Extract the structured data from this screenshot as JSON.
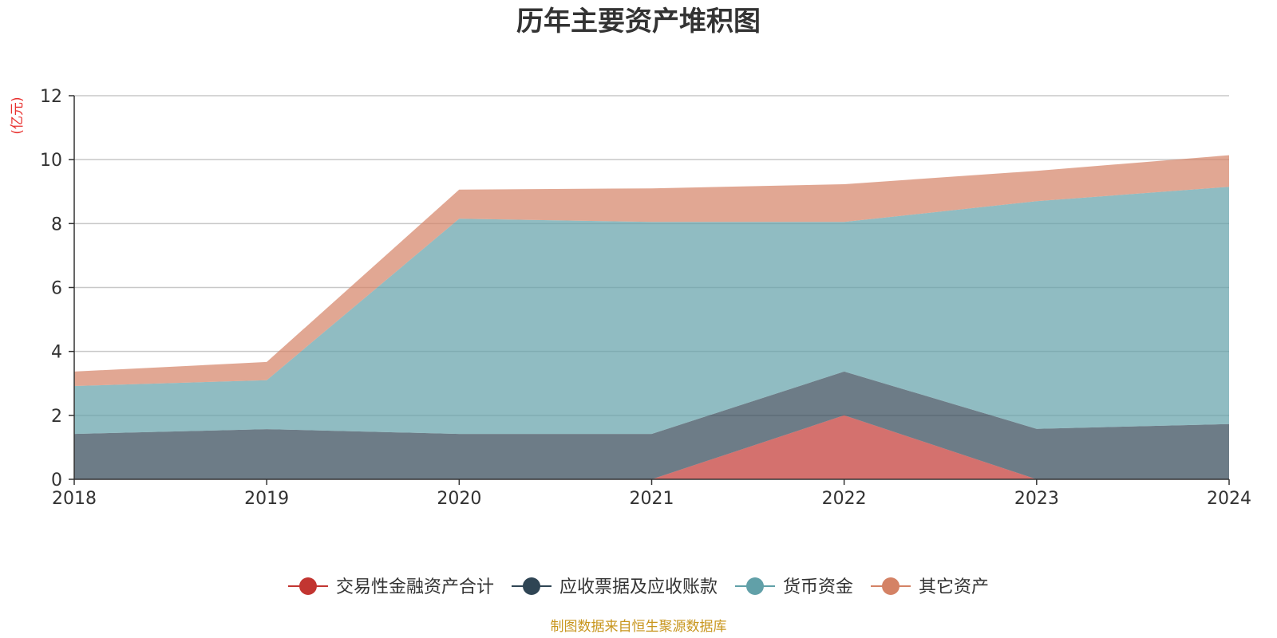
{
  "chart_data": {
    "type": "area",
    "stacked": true,
    "title": "历年主要资产堆积图",
    "unit_label": "(亿元)",
    "x": [
      "2018",
      "2019",
      "2020",
      "2021",
      "2022",
      "2023",
      "2024"
    ],
    "ylim": [
      0,
      12
    ],
    "yticks": [
      "0",
      "2",
      "4",
      "6",
      "8",
      "10",
      "12"
    ],
    "grid": true,
    "legend_position": "bottom",
    "series": [
      {
        "name": "交易性金融资产合计",
        "values": [
          0,
          0,
          0,
          0,
          2.0,
          0,
          0
        ],
        "color": "#c23531"
      },
      {
        "name": "应收票据及应收账款",
        "values": [
          1.42,
          1.57,
          1.42,
          1.42,
          1.37,
          1.58,
          1.73
        ],
        "color": "#2f4554"
      },
      {
        "name": "货币资金",
        "values": [
          1.5,
          1.53,
          6.73,
          6.63,
          4.68,
          7.12,
          7.42
        ],
        "color": "#61a0a8"
      },
      {
        "name": "其它资产",
        "values": [
          0.45,
          0.57,
          0.91,
          1.05,
          1.18,
          0.95,
          0.99
        ],
        "color": "#d48265"
      }
    ],
    "source": "制图数据来自恒生聚源数据库"
  }
}
